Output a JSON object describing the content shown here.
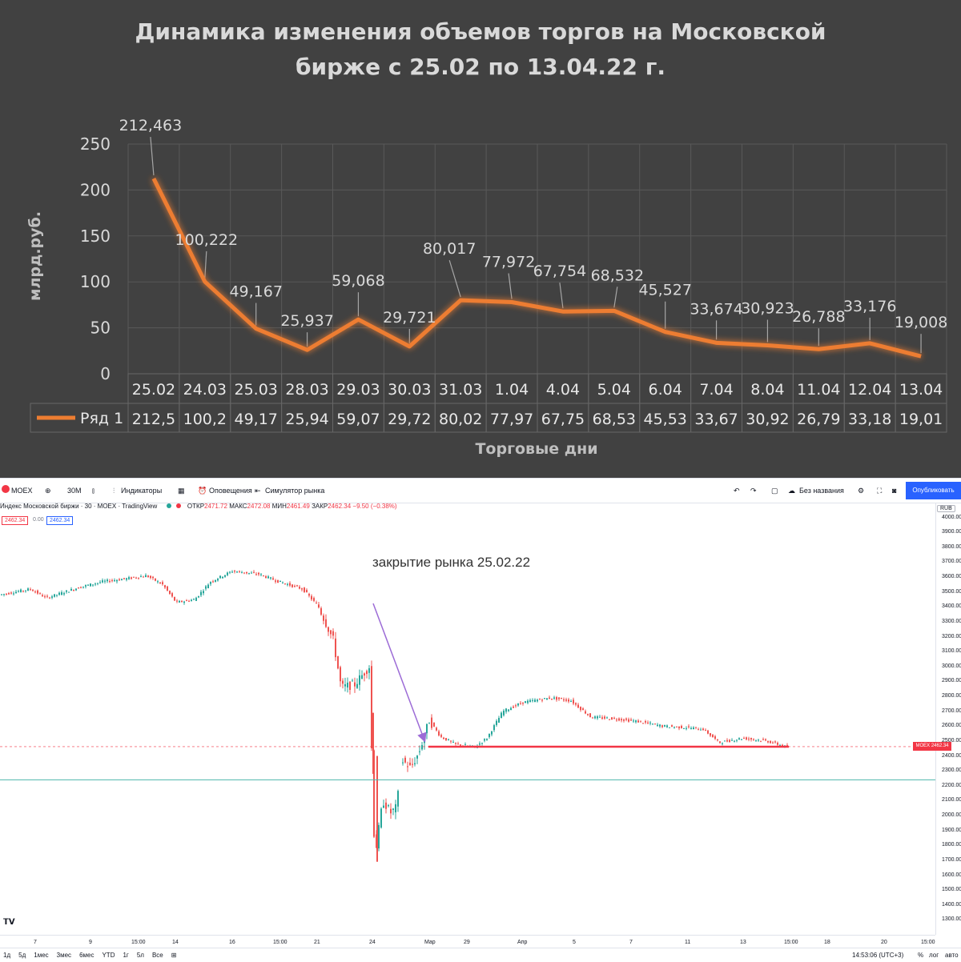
{
  "chart_data": [
    {
      "type": "line",
      "title": "Динамика изменения объемов торгов на Московской бирже с 25.02 по 13.04.22 г.",
      "title_lines": [
        "Динамика изменения объемов торгов на Московской",
        "бирже с 25.02 по 13.04.22 г."
      ],
      "ylabel": "млрд.руб.",
      "xlabel": "Торговые дни",
      "ylim": [
        0,
        250
      ],
      "yticks": [
        "0",
        "50",
        "100",
        "150",
        "200",
        "250"
      ],
      "categories": [
        "25.02",
        "24.03",
        "25.03",
        "28.03",
        "29.03",
        "30.03",
        "31.03",
        "1.04",
        "4.04",
        "5.04",
        "6.04",
        "7.04",
        "8.04",
        "11.04",
        "12.04",
        "13.04"
      ],
      "series": [
        {
          "name": "Ряд 1",
          "values": [
            212.463,
            100.222,
            49.167,
            25.937,
            59.068,
            29.721,
            80.017,
            77.972,
            67.754,
            68.532,
            45.527,
            33.674,
            30.923,
            26.788,
            33.176,
            19.008
          ],
          "data_labels": [
            "212,463",
            "100,222",
            "49,167",
            "25,937",
            "59,068",
            "29,721",
            "80,017",
            "77,972",
            "67,754",
            "68,532",
            "45,527",
            "33,674",
            "30,923",
            "26,788",
            "33,176",
            "19,008"
          ],
          "table_values": [
            "212,5",
            "100,2",
            "49,17",
            "25,94",
            "59,07",
            "29,72",
            "80,02",
            "77,97",
            "67,75",
            "68,53",
            "45,53",
            "33,67",
            "30,92",
            "26,79",
            "33,18",
            "19,01"
          ],
          "color": "#ed7d31"
        }
      ],
      "grid": true,
      "data_table": true
    },
    {
      "type": "candlestick",
      "instrument": "Индекс Московской биржи · 30 · MOEX · TradingView",
      "ohlc": {
        "open_label": "ОТКР",
        "open": "2471.72",
        "high_label": "МАКС",
        "high": "2472.08",
        "low_label": "МИН",
        "low": "2461.49",
        "close_label": "ЗАКР",
        "close": "2462.34",
        "change": "−9.50 (−0.38%)"
      },
      "last_price": "2462.34",
      "currency": "RUB",
      "annotation": "закрытие рынка 25.02.22",
      "ylim": [
        1200,
        4100
      ],
      "yticks": [
        "4000.00",
        "3900.00",
        "3800.00",
        "3700.00",
        "3600.00",
        "3500.00",
        "3400.00",
        "3300.00",
        "3200.00",
        "3100.00",
        "3000.00",
        "2900.00",
        "2800.00",
        "2700.00",
        "2600.00",
        "2500.00",
        "2400.00",
        "2300.00",
        "2200.00",
        "2100.00",
        "2000.00",
        "1900.00",
        "1800.00",
        "1700.00",
        "1600.00",
        "1500.00",
        "1400.00",
        "1300.00"
      ],
      "xticks": [
        "7",
        "9",
        "15:00",
        "14",
        "16",
        "15:00",
        "21",
        "24",
        "Мар",
        "29",
        "Апр",
        "5",
        "7",
        "11",
        "13",
        "15:00",
        "18",
        "20",
        "15:00"
      ],
      "horizontal_levels": [
        {
          "value": 2462.34,
          "color": "#f23645"
        },
        {
          "value": 2240,
          "color": "#4db6ac"
        }
      ],
      "colors": {
        "up": "#26a69a",
        "down": "#ef5350"
      }
    }
  ],
  "toolbar": {
    "symbol": "MOEX",
    "interval": "30M",
    "indicators": "Индикаторы",
    "alerts": "Оповещения",
    "replay": "Симулятор рынка",
    "layout_name": "Без названия",
    "publish": "Опубликовать"
  },
  "price_boxes": [
    "2462.34",
    "0.00",
    "2462.34"
  ],
  "bottom_bar": {
    "ranges": [
      "1д",
      "5д",
      "1мес",
      "3мес",
      "6мес",
      "YTD",
      "1г",
      "5л",
      "Все"
    ],
    "time": "14:53:06 (UTC+3)",
    "percent": "%",
    "log": "лог",
    "auto": "авто"
  }
}
